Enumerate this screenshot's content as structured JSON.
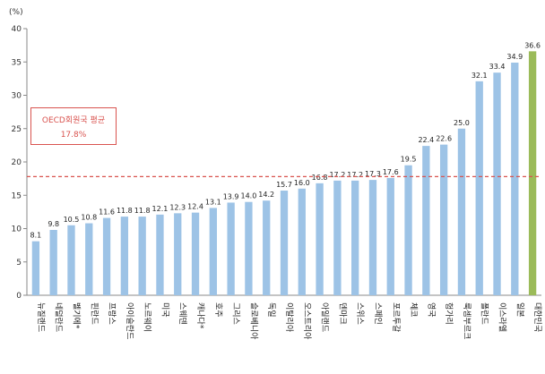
{
  "chart_data": {
    "type": "bar",
    "title": "",
    "xlabel": "",
    "ylabel": "(%)",
    "ylim": [
      0,
      40
    ],
    "yticks": [
      0,
      5,
      10,
      15,
      20,
      25,
      30,
      35,
      40
    ],
    "grid": false,
    "categories": [
      "뉴질랜드",
      "네덜란드",
      "벨기에*",
      "핀란드",
      "프랑스",
      "아이슬란드",
      "노르웨이",
      "미국",
      "스웨덴",
      "캐나다*",
      "호주",
      "그리스",
      "슬로베니아",
      "독일",
      "이탈리아",
      "오스트리아",
      "아일랜드",
      "덴마크",
      "스위스",
      "스페인",
      "포르투갈",
      "체코",
      "영국",
      "헝가리",
      "룩셈부르크",
      "폴란드",
      "이스라엘",
      "일본",
      "대한민국"
    ],
    "values": [
      8.1,
      9.8,
      10.5,
      10.8,
      11.6,
      11.8,
      11.8,
      12.1,
      12.3,
      12.4,
      13.1,
      13.9,
      14.0,
      14.2,
      15.7,
      16.0,
      16.8,
      17.2,
      17.2,
      17.3,
      17.6,
      19.5,
      22.4,
      22.6,
      25.0,
      32.1,
      33.4,
      34.9,
      36.6
    ],
    "value_labels": [
      "8.1",
      "9.8",
      "10.5",
      "10.8",
      "11.6",
      "11.8",
      "11.8",
      "12.1",
      "12.3",
      "12.4",
      "13.1",
      "13.9",
      "14.0",
      "14.2",
      "15.7",
      "16.0",
      "16.8",
      "17.2",
      "17.2",
      "17.3",
      "17.6",
      "19.5",
      "22.4",
      "22.6",
      "25.0",
      "32.1",
      "33.4",
      "34.9",
      "36.6"
    ],
    "highlight_index": 28,
    "reference_line": {
      "value": 17.8,
      "label": "OECD회원국 평균",
      "value_label": "17.8%"
    },
    "colors": {
      "bar": "#9dc3e6",
      "highlight": "#9bbb59",
      "highlight_label": "#9bbb59",
      "reference": "#d9534f",
      "axis": "#888888"
    }
  }
}
